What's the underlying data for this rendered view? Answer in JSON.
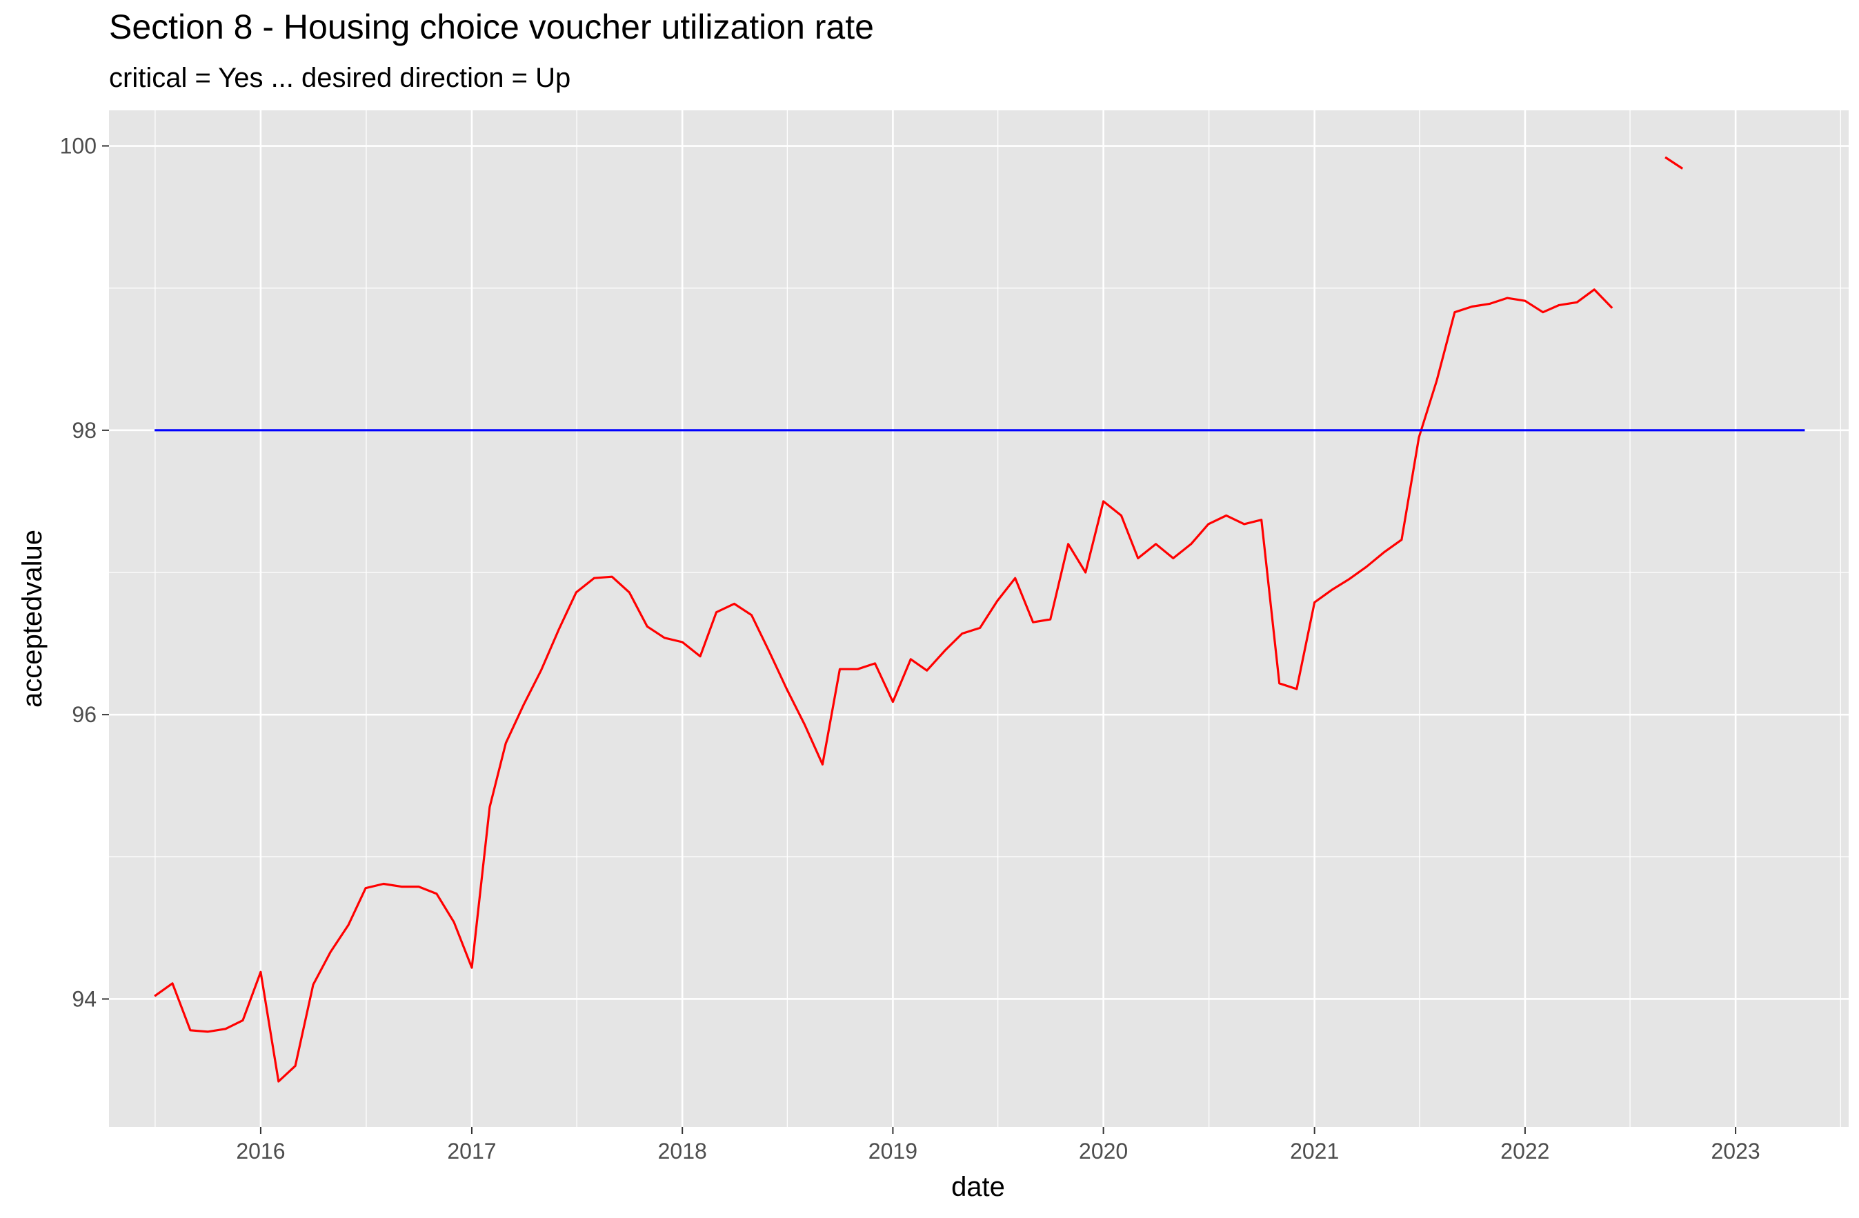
{
  "chart_data": {
    "type": "line",
    "title": "Section 8 - Housing choice voucher utilization rate",
    "subtitle": "critical = Yes ... desired direction = Up",
    "xlabel": "date",
    "ylabel": "acceptedvalue",
    "x_ticks": [
      "2016",
      "2017",
      "2018",
      "2019",
      "2020",
      "2021",
      "2022",
      "2023"
    ],
    "y_ticks": [
      "94",
      "96",
      "98",
      "100"
    ],
    "xlim": [
      "2015-04-13",
      "2023-07-16"
    ],
    "ylim": [
      93.1,
      100.25
    ],
    "grid": true,
    "background": "#e5e5e5",
    "series": [
      {
        "color": "#ff0000",
        "segments": [
          {
            "x": [
              "2015-07-01",
              "2015-08-01",
              "2015-09-01",
              "2015-10-01",
              "2015-11-01",
              "2015-12-01",
              "2016-01-01",
              "2016-02-01",
              "2016-03-01",
              "2016-04-01",
              "2016-05-01",
              "2016-06-01",
              "2016-07-01",
              "2016-08-01",
              "2016-09-01",
              "2016-10-01",
              "2016-11-01",
              "2016-12-01",
              "2017-01-01",
              "2017-02-01",
              "2017-03-01",
              "2017-04-01",
              "2017-05-01",
              "2017-06-01",
              "2017-07-01",
              "2017-08-01",
              "2017-09-01",
              "2017-10-01",
              "2017-11-01",
              "2017-12-01",
              "2018-01-01",
              "2018-02-01",
              "2018-03-01",
              "2018-04-01",
              "2018-05-01",
              "2018-06-01",
              "2018-07-01",
              "2018-08-01",
              "2018-09-01",
              "2018-10-01",
              "2018-11-01",
              "2018-12-01",
              "2019-01-01",
              "2019-02-01",
              "2019-03-01",
              "2019-04-01",
              "2019-05-01",
              "2019-06-01",
              "2019-07-01",
              "2019-08-01",
              "2019-09-01",
              "2019-10-01",
              "2019-11-01",
              "2019-12-01",
              "2020-01-01",
              "2020-02-01",
              "2020-03-01",
              "2020-04-01",
              "2020-05-01",
              "2020-06-01",
              "2020-07-01",
              "2020-08-01",
              "2020-09-01",
              "2020-10-01",
              "2020-11-01",
              "2020-12-01",
              "2021-01-01",
              "2021-02-01",
              "2021-03-01",
              "2021-04-01",
              "2021-05-01",
              "2021-06-01",
              "2021-07-01",
              "2021-08-01",
              "2021-09-01",
              "2021-10-01",
              "2021-11-01",
              "2021-12-01",
              "2022-01-01",
              "2022-02-01",
              "2022-03-01",
              "2022-04-01",
              "2022-05-01",
              "2022-06-01"
            ],
            "y": [
              94.02,
              94.11,
              93.78,
              93.77,
              93.79,
              93.85,
              94.19,
              93.42,
              93.53,
              94.1,
              94.33,
              94.52,
              94.78,
              94.81,
              94.79,
              94.79,
              94.74,
              94.54,
              94.22,
              95.35,
              95.8,
              96.07,
              96.31,
              96.6,
              96.86,
              96.96,
              96.97,
              96.86,
              96.62,
              96.54,
              96.51,
              96.41,
              96.72,
              96.78,
              96.7,
              96.44,
              96.18,
              95.93,
              95.65,
              96.32,
              96.32,
              96.36,
              96.09,
              96.39,
              96.31,
              96.45,
              96.57,
              96.61,
              96.8,
              96.96,
              96.65,
              96.67,
              97.2,
              97.0,
              97.5,
              97.4,
              97.1,
              97.2,
              97.1,
              97.2,
              97.34,
              97.4,
              97.34,
              97.37,
              96.22,
              96.18,
              96.79,
              96.88,
              96.95,
              97.04,
              97.14,
              97.23,
              97.95,
              98.35,
              98.83,
              98.87,
              98.89,
              98.93,
              98.91,
              98.83,
              98.88,
              98.9,
              98.99,
              98.86
            ]
          },
          {
            "x": [
              "2022-09-01",
              "2022-10-01"
            ],
            "y": [
              99.92,
              99.84
            ]
          }
        ]
      },
      {
        "color": "#0000ff",
        "segments": [
          {
            "x": [
              "2015-07-01",
              "2023-05-01"
            ],
            "y": [
              98.0,
              98.0
            ]
          }
        ]
      }
    ]
  }
}
